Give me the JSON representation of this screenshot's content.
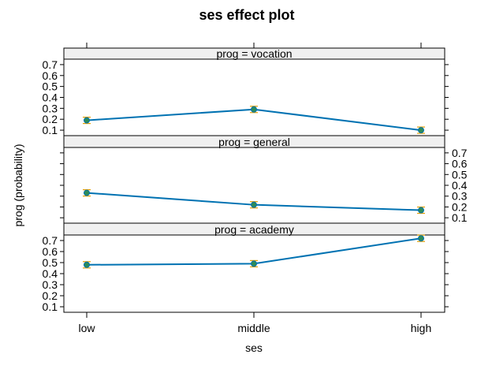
{
  "chart_data": {
    "type": "line",
    "title": "ses effect plot",
    "xlabel": "ses",
    "ylabel": "prog (probability)",
    "categories": [
      "low",
      "middle",
      "high"
    ],
    "ylim": [
      0.05,
      0.75
    ],
    "yticks": [
      "0.1",
      "0.2",
      "0.3",
      "0.4",
      "0.5",
      "0.6",
      "0.7"
    ],
    "line_color": "#0072b2",
    "marker_color": "#2e8b57",
    "errorbar_color": "#e69f00",
    "strip_color": "#f0f0f0",
    "panels": [
      {
        "strip": "prog = vocation",
        "values": [
          0.19,
          0.29,
          0.1
        ],
        "ytick_side": "left"
      },
      {
        "strip": "prog = general",
        "values": [
          0.33,
          0.22,
          0.17
        ],
        "ytick_side": "right"
      },
      {
        "strip": "prog = academy",
        "values": [
          0.48,
          0.49,
          0.72
        ],
        "ytick_side": "left"
      }
    ]
  }
}
